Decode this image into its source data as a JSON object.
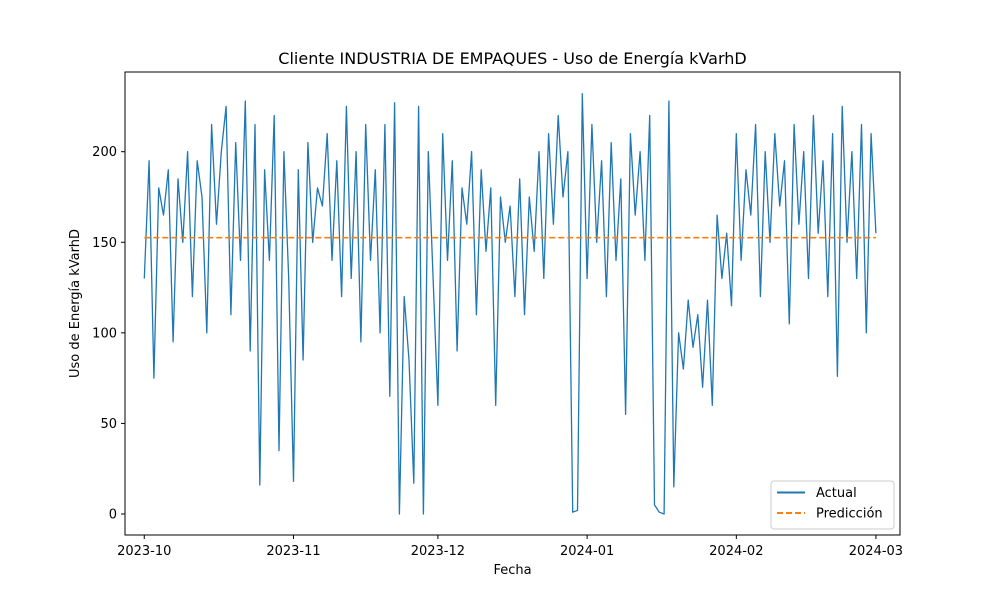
{
  "chart_data": {
    "type": "line",
    "title": "Cliente INDUSTRIA DE EMPAQUES - Uso de Energía kVarhD",
    "xlabel": "Fecha",
    "ylabel": "Uso de Energía kVarhD",
    "x_range": [
      "2023-09-27",
      "2024-03-06"
    ],
    "ylim": [
      -11.6,
      244
    ],
    "x_ticks": [
      "2023-10",
      "2023-11",
      "2023-12",
      "2024-01",
      "2024-02",
      "2024-03"
    ],
    "y_ticks": [
      0,
      50,
      100,
      150,
      200
    ],
    "grid": false,
    "legend_position": "lower right",
    "series": [
      {
        "name": "Actual",
        "color": "#1f77b4",
        "style": "solid",
        "points": [
          [
            "2023-10-01",
            130
          ],
          [
            "2023-10-02",
            195
          ],
          [
            "2023-10-03",
            75
          ],
          [
            "2023-10-04",
            180
          ],
          [
            "2023-10-05",
            165
          ],
          [
            "2023-10-06",
            190
          ],
          [
            "2023-10-07",
            95
          ],
          [
            "2023-10-08",
            185
          ],
          [
            "2023-10-09",
            150
          ],
          [
            "2023-10-10",
            200
          ],
          [
            "2023-10-11",
            120
          ],
          [
            "2023-10-12",
            195
          ],
          [
            "2023-10-13",
            175
          ],
          [
            "2023-10-14",
            100
          ],
          [
            "2023-10-15",
            215
          ],
          [
            "2023-10-16",
            160
          ],
          [
            "2023-10-17",
            200
          ],
          [
            "2023-10-18",
            225
          ],
          [
            "2023-10-19",
            110
          ],
          [
            "2023-10-20",
            205
          ],
          [
            "2023-10-21",
            140
          ],
          [
            "2023-10-22",
            228
          ],
          [
            "2023-10-23",
            90
          ],
          [
            "2023-10-24",
            215
          ],
          [
            "2023-10-25",
            16
          ],
          [
            "2023-10-26",
            190
          ],
          [
            "2023-10-27",
            140
          ],
          [
            "2023-10-28",
            220
          ],
          [
            "2023-10-29",
            35
          ],
          [
            "2023-10-30",
            200
          ],
          [
            "2023-10-31",
            130
          ],
          [
            "2023-11-01",
            18
          ],
          [
            "2023-11-02",
            190
          ],
          [
            "2023-11-03",
            85
          ],
          [
            "2023-11-04",
            205
          ],
          [
            "2023-11-05",
            150
          ],
          [
            "2023-11-06",
            180
          ],
          [
            "2023-11-07",
            170
          ],
          [
            "2023-11-08",
            210
          ],
          [
            "2023-11-09",
            140
          ],
          [
            "2023-11-10",
            195
          ],
          [
            "2023-11-11",
            120
          ],
          [
            "2023-11-12",
            225
          ],
          [
            "2023-11-13",
            130
          ],
          [
            "2023-11-14",
            200
          ],
          [
            "2023-11-15",
            95
          ],
          [
            "2023-11-16",
            215
          ],
          [
            "2023-11-17",
            140
          ],
          [
            "2023-11-18",
            190
          ],
          [
            "2023-11-19",
            100
          ],
          [
            "2023-11-20",
            215
          ],
          [
            "2023-11-21",
            65
          ],
          [
            "2023-11-22",
            227
          ],
          [
            "2023-11-23",
            0
          ],
          [
            "2023-11-24",
            120
          ],
          [
            "2023-11-25",
            85
          ],
          [
            "2023-11-26",
            17
          ],
          [
            "2023-11-27",
            225
          ],
          [
            "2023-11-28",
            0
          ],
          [
            "2023-11-29",
            200
          ],
          [
            "2023-11-30",
            130
          ],
          [
            "2023-12-01",
            60
          ],
          [
            "2023-12-02",
            210
          ],
          [
            "2023-12-03",
            140
          ],
          [
            "2023-12-04",
            195
          ],
          [
            "2023-12-05",
            90
          ],
          [
            "2023-12-06",
            180
          ],
          [
            "2023-12-07",
            160
          ],
          [
            "2023-12-08",
            200
          ],
          [
            "2023-12-09",
            110
          ],
          [
            "2023-12-10",
            190
          ],
          [
            "2023-12-11",
            145
          ],
          [
            "2023-12-12",
            180
          ],
          [
            "2023-12-13",
            60
          ],
          [
            "2023-12-14",
            175
          ],
          [
            "2023-12-15",
            150
          ],
          [
            "2023-12-16",
            170
          ],
          [
            "2023-12-17",
            120
          ],
          [
            "2023-12-18",
            185
          ],
          [
            "2023-12-19",
            110
          ],
          [
            "2023-12-20",
            175
          ],
          [
            "2023-12-21",
            145
          ],
          [
            "2023-12-22",
            200
          ],
          [
            "2023-12-23",
            130
          ],
          [
            "2023-12-24",
            210
          ],
          [
            "2023-12-25",
            160
          ],
          [
            "2023-12-26",
            220
          ],
          [
            "2023-12-27",
            175
          ],
          [
            "2023-12-28",
            200
          ],
          [
            "2023-12-29",
            1
          ],
          [
            "2023-12-30",
            2
          ],
          [
            "2023-12-31",
            232
          ],
          [
            "2024-01-01",
            130
          ],
          [
            "2024-01-02",
            215
          ],
          [
            "2024-01-03",
            150
          ],
          [
            "2024-01-04",
            195
          ],
          [
            "2024-01-05",
            120
          ],
          [
            "2024-01-06",
            205
          ],
          [
            "2024-01-07",
            140
          ],
          [
            "2024-01-08",
            185
          ],
          [
            "2024-01-09",
            55
          ],
          [
            "2024-01-10",
            210
          ],
          [
            "2024-01-11",
            165
          ],
          [
            "2024-01-12",
            200
          ],
          [
            "2024-01-13",
            140
          ],
          [
            "2024-01-14",
            220
          ],
          [
            "2024-01-15",
            5
          ],
          [
            "2024-01-16",
            1
          ],
          [
            "2024-01-17",
            0
          ],
          [
            "2024-01-18",
            228
          ],
          [
            "2024-01-19",
            15
          ],
          [
            "2024-01-20",
            100
          ],
          [
            "2024-01-21",
            80
          ],
          [
            "2024-01-22",
            118
          ],
          [
            "2024-01-23",
            92
          ],
          [
            "2024-01-24",
            110
          ],
          [
            "2024-01-25",
            70
          ],
          [
            "2024-01-26",
            118
          ],
          [
            "2024-01-27",
            60
          ],
          [
            "2024-01-28",
            165
          ],
          [
            "2024-01-29",
            130
          ],
          [
            "2024-01-30",
            155
          ],
          [
            "2024-01-31",
            115
          ],
          [
            "2024-02-01",
            210
          ],
          [
            "2024-02-02",
            140
          ],
          [
            "2024-02-03",
            190
          ],
          [
            "2024-02-04",
            165
          ],
          [
            "2024-02-05",
            215
          ],
          [
            "2024-02-06",
            120
          ],
          [
            "2024-02-07",
            200
          ],
          [
            "2024-02-08",
            150
          ],
          [
            "2024-02-09",
            210
          ],
          [
            "2024-02-10",
            170
          ],
          [
            "2024-02-11",
            195
          ],
          [
            "2024-02-12",
            105
          ],
          [
            "2024-02-13",
            215
          ],
          [
            "2024-02-14",
            160
          ],
          [
            "2024-02-15",
            200
          ],
          [
            "2024-02-16",
            130
          ],
          [
            "2024-02-17",
            220
          ],
          [
            "2024-02-18",
            155
          ],
          [
            "2024-02-19",
            195
          ],
          [
            "2024-02-20",
            120
          ],
          [
            "2024-02-21",
            210
          ],
          [
            "2024-02-22",
            76
          ],
          [
            "2024-02-23",
            225
          ],
          [
            "2024-02-24",
            150
          ],
          [
            "2024-02-25",
            200
          ],
          [
            "2024-02-26",
            130
          ],
          [
            "2024-02-27",
            215
          ],
          [
            "2024-02-28",
            100
          ],
          [
            "2024-02-29",
            210
          ],
          [
            "2024-03-01",
            155
          ]
        ]
      },
      {
        "name": "Predicción",
        "color": "#ff7f0e",
        "style": "dashed",
        "points": [
          [
            "2023-10-01",
            152.5
          ],
          [
            "2024-03-01",
            152.5
          ]
        ]
      }
    ]
  }
}
